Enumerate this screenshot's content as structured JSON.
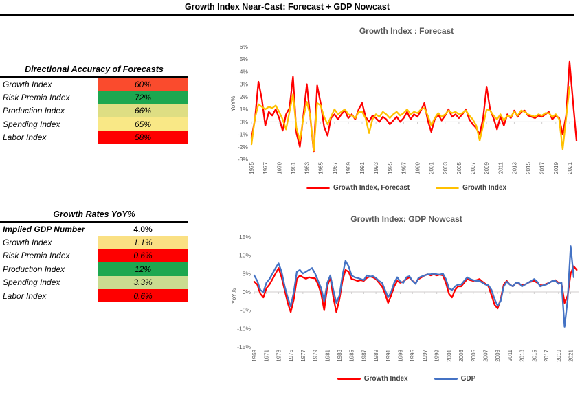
{
  "page_title": "Growth Index Near-Cast: Forecast + GDP Nowcast",
  "accuracy_table": {
    "title": "Directional Accuracy of Forecasts",
    "rows": [
      {
        "label": "Growth Index",
        "value": "60%",
        "color": "#FA4B2D"
      },
      {
        "label": "Risk Premia Index",
        "value": "72%",
        "color": "#1DA750"
      },
      {
        "label": "Production Index",
        "value": "66%",
        "color": "#DEDE83"
      },
      {
        "label": "Spending Index",
        "value": "65%",
        "color": "#F9E886"
      },
      {
        "label": "Labor Index",
        "value": "58%",
        "color": "#FE0000"
      }
    ]
  },
  "growth_table": {
    "title": "Growth Rates YoY%",
    "header_row": {
      "label": "Implied GDP Number",
      "value": "4.0%"
    },
    "rows": [
      {
        "label": "Growth Index",
        "value": "1.1%",
        "color": "#FAE083"
      },
      {
        "label": "Risk Premia Index",
        "value": "0.6%",
        "color": "#FE0000"
      },
      {
        "label": "Production Index",
        "value": "12%",
        "color": "#1DA750"
      },
      {
        "label": "Spending Index",
        "value": "3.3%",
        "color": "#CADC90"
      },
      {
        "label": "Labor Index",
        "value": "0.6%",
        "color": "#FE0000"
      }
    ]
  },
  "chart_data": [
    {
      "type": "line",
      "title": "Growth Index : Forecast",
      "ylabel": "YoY%",
      "ylim": [
        -3,
        6
      ],
      "yticks": [
        6,
        5,
        4,
        3,
        2,
        1,
        0,
        -1,
        -2,
        -3
      ],
      "xlim": [
        1975,
        2022.3
      ],
      "xticks": [
        1975,
        1977,
        1979,
        1981,
        1983,
        1985,
        1987,
        1989,
        1991,
        1993,
        1995,
        1997,
        1999,
        2001,
        2003,
        2005,
        2007,
        2009,
        2011,
        2013,
        2015,
        2017,
        2019,
        2021
      ],
      "legend_position": "bottom",
      "grid": "zero-axis-only",
      "series": [
        {
          "name": "Growth Index, Forecast",
          "color": "#FF0000",
          "x_start": 1975,
          "x_step": 0.5,
          "values": [
            -1.3,
            0.2,
            3.2,
            1.8,
            -0.3,
            0.8,
            0.5,
            1.0,
            0.3,
            -0.7,
            0.6,
            1.1,
            3.6,
            -0.9,
            -2.0,
            0.5,
            3.0,
            0.4,
            -2.4,
            2.9,
            1.5,
            -0.4,
            -1.1,
            0.3,
            0.6,
            0.2,
            0.6,
            0.9,
            0.3,
            0.6,
            0.2,
            1.0,
            1.5,
            0.4,
            0.0,
            0.5,
            0.3,
            0.0,
            0.4,
            0.2,
            -0.2,
            0.1,
            0.4,
            0.0,
            0.3,
            0.8,
            0.2,
            0.6,
            0.4,
            0.9,
            1.5,
            0.1,
            -0.8,
            0.2,
            0.6,
            0.1,
            0.5,
            1.0,
            0.4,
            0.6,
            0.3,
            0.6,
            1.0,
            0.2,
            -0.2,
            -0.5,
            -1.0,
            0.3,
            2.8,
            1.0,
            0.3,
            -0.6,
            0.4,
            -0.3,
            0.6,
            0.3,
            0.9,
            0.4,
            0.8,
            0.9,
            0.5,
            0.4,
            0.3,
            0.5,
            0.4,
            0.6,
            0.8,
            0.2,
            0.5,
            0.3,
            -1.0,
            0.5,
            4.8,
            1.6,
            -1.5
          ]
        },
        {
          "name": "Growth Index",
          "color": "#FFC000",
          "x_start": 1975,
          "x_step": 0.5,
          "values": [
            -1.8,
            0.3,
            1.4,
            1.2,
            1.0,
            1.2,
            1.1,
            1.3,
            0.8,
            0.2,
            -0.6,
            0.8,
            2.2,
            -0.5,
            -1.5,
            0.3,
            1.6,
            0.5,
            -2.3,
            1.5,
            1.3,
            0.4,
            -0.2,
            0.4,
            1.0,
            0.6,
            0.8,
            1.0,
            0.6,
            0.5,
            0.3,
            0.8,
            0.8,
            0.3,
            -0.9,
            0.2,
            0.6,
            0.4,
            0.8,
            0.6,
            0.3,
            0.6,
            0.8,
            0.5,
            0.7,
            1.0,
            0.6,
            0.8,
            0.7,
            1.0,
            1.1,
            0.5,
            -0.3,
            0.3,
            0.7,
            0.4,
            0.6,
            0.9,
            0.7,
            0.8,
            0.6,
            0.7,
            0.9,
            0.5,
            0.2,
            -0.3,
            -1.5,
            -0.3,
            1.0,
            0.9,
            0.5,
            0.2,
            0.6,
            0.1,
            0.5,
            0.4,
            0.8,
            0.5,
            0.9,
            0.8,
            0.6,
            0.5,
            0.4,
            0.6,
            0.5,
            0.7,
            0.7,
            0.4,
            0.6,
            0.2,
            -2.2,
            0.3,
            2.8
          ]
        }
      ]
    },
    {
      "type": "line",
      "title": "Growth Index: GDP Nowcast",
      "ylabel": "YoY%",
      "ylim": [
        -15,
        15
      ],
      "yticks": [
        15,
        10,
        5,
        0,
        -5,
        -10,
        -15
      ],
      "xlim": [
        1969,
        2022.3
      ],
      "xticks": [
        1969,
        1971,
        1973,
        1975,
        1977,
        1979,
        1981,
        1983,
        1985,
        1987,
        1989,
        1991,
        1993,
        1995,
        1997,
        1999,
        2001,
        2003,
        2005,
        2007,
        2009,
        2011,
        2013,
        2015,
        2017,
        2019,
        2021
      ],
      "legend_position": "bottom",
      "grid": "zero-axis-only",
      "series": [
        {
          "name": "Growth Index",
          "color": "#FF0000",
          "x_start": 1969,
          "x_step": 0.5,
          "values": [
            2.8,
            2.0,
            -0.5,
            -1.5,
            1.0,
            2.0,
            3.5,
            5.0,
            6.5,
            4.0,
            0.5,
            -3.0,
            -5.5,
            -2.0,
            3.5,
            4.5,
            4.0,
            3.6,
            4.0,
            3.8,
            3.7,
            2.0,
            -0.5,
            -5.0,
            1.5,
            4.0,
            -1.5,
            -5.5,
            -2.0,
            3.0,
            6.0,
            5.5,
            3.5,
            3.3,
            3.0,
            3.2,
            3.0,
            3.8,
            4.2,
            4.0,
            3.5,
            2.5,
            1.5,
            -0.5,
            -3.0,
            -1.0,
            1.5,
            3.0,
            2.5,
            2.8,
            3.5,
            4.0,
            3.0,
            2.5,
            3.5,
            4.0,
            4.5,
            4.8,
            4.5,
            4.8,
            4.5,
            4.7,
            4.5,
            2.5,
            -0.5,
            -1.5,
            0.5,
            1.5,
            1.5,
            2.5,
            3.5,
            3.2,
            3.0,
            3.2,
            3.5,
            2.8,
            2.2,
            1.5,
            -1.0,
            -3.5,
            -4.5,
            -2.0,
            2.0,
            3.0,
            2.0,
            1.5,
            2.5,
            2.2,
            1.8,
            2.0,
            2.5,
            2.8,
            3.0,
            2.5,
            1.8,
            1.8,
            2.2,
            2.5,
            3.0,
            3.2,
            2.5,
            2.2,
            -3.0,
            -1.0,
            5.0,
            7.0,
            6.0
          ]
        },
        {
          "name": "GDP",
          "color": "#4472C4",
          "x_start": 1969,
          "x_step": 0.5,
          "values": [
            4.5,
            3.0,
            0.5,
            0.0,
            2.5,
            3.5,
            5.0,
            6.5,
            7.8,
            5.5,
            1.5,
            -1.5,
            -4.0,
            0.0,
            5.5,
            6.0,
            5.0,
            5.5,
            6.0,
            6.5,
            5.0,
            3.0,
            1.0,
            -2.5,
            2.5,
            4.5,
            0.5,
            -3.0,
            -1.0,
            4.5,
            8.5,
            7.0,
            4.5,
            4.0,
            3.8,
            3.5,
            3.2,
            4.5,
            4.2,
            4.3,
            3.8,
            3.0,
            2.5,
            0.5,
            -1.5,
            0.0,
            2.5,
            4.0,
            2.8,
            2.5,
            4.0,
            4.3,
            3.0,
            2.2,
            3.8,
            4.2,
            4.5,
            4.8,
            4.8,
            5.0,
            4.8,
            4.7,
            5.0,
            3.5,
            1.0,
            0.5,
            1.5,
            2.0,
            2.0,
            3.0,
            4.0,
            3.5,
            3.2,
            3.0,
            3.0,
            2.5,
            2.0,
            1.8,
            0.5,
            -2.0,
            -3.8,
            -2.5,
            1.5,
            2.8,
            2.0,
            1.5,
            2.5,
            2.5,
            1.5,
            2.0,
            2.5,
            3.0,
            3.5,
            2.8,
            1.5,
            1.8,
            2.0,
            2.5,
            3.0,
            3.0,
            2.2,
            2.5,
            -9.5,
            -2.0,
            12.5,
            4.0
          ]
        }
      ]
    }
  ]
}
